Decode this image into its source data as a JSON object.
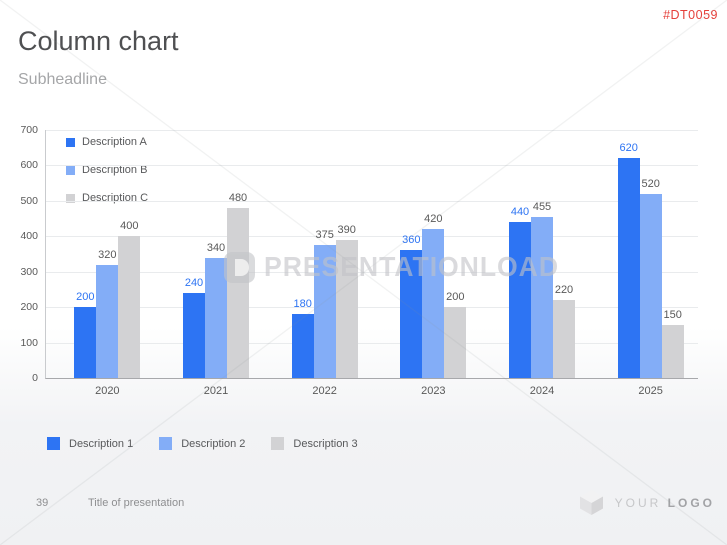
{
  "slide": {
    "code": "#DT0059",
    "title": "Column chart",
    "subheadline": "Subheadline",
    "watermark_text": "PRESENTATIONLOAD",
    "footer": {
      "page_number": "39",
      "title": "Title of presentation",
      "logo_text_light": "YOUR",
      "logo_text_bold": "LOGO"
    }
  },
  "colors": {
    "code_red": "#e5403b",
    "series_blue": "#2d74f3",
    "series_light_blue": "#83adf7",
    "series_gray": "#d2d2d4",
    "label_gray": "#595959",
    "grid": "#e9ebed",
    "axis": "#a7a8ab"
  },
  "chart_data": {
    "type": "bar",
    "title": "",
    "xlabel": "",
    "ylabel": "",
    "categories": [
      "2020",
      "2021",
      "2022",
      "2023",
      "2024",
      "2025"
    ],
    "series": [
      {
        "name": "Description A",
        "color": "#2d74f3",
        "label_color": "#2d74f3",
        "values": [
          200,
          240,
          180,
          360,
          440,
          620
        ]
      },
      {
        "name": "Description B",
        "color": "#83adf7",
        "label_color": "#595959",
        "values": [
          320,
          340,
          375,
          420,
          455,
          520
        ]
      },
      {
        "name": "Description C",
        "color": "#d2d2d4",
        "label_color": "#595959",
        "values": [
          400,
          480,
          390,
          200,
          220,
          150
        ]
      }
    ],
    "ylim": [
      0,
      700
    ],
    "ytick_step": 100,
    "grid": true,
    "legend_top": [
      "Description A",
      "Description B",
      "Description C"
    ],
    "legend_top_position": "upper-left-inside",
    "legend_bottom": [
      "Description 1",
      "Description 2",
      "Description 3"
    ],
    "legend_bottom_position": "below-chart"
  }
}
